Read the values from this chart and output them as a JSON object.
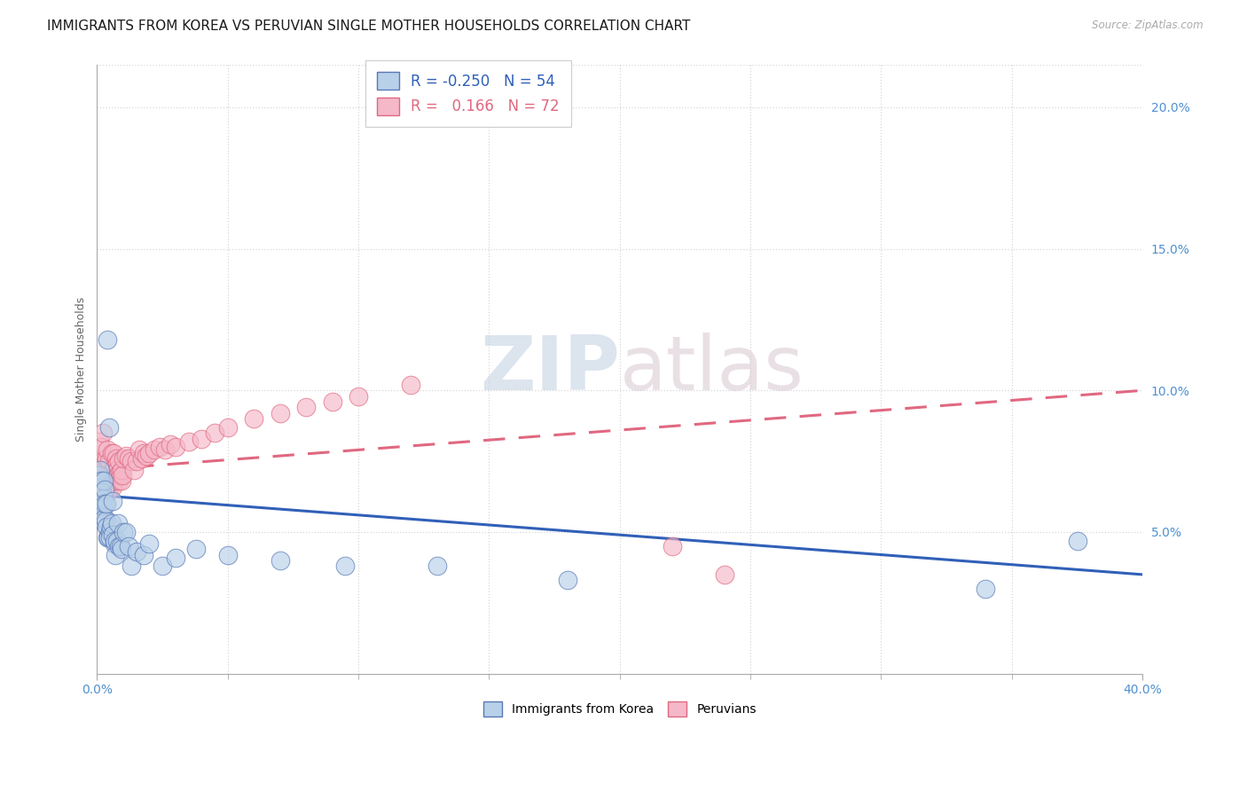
{
  "title": "IMMIGRANTS FROM KOREA VS PERUVIAN SINGLE MOTHER HOUSEHOLDS CORRELATION CHART",
  "source": "Source: ZipAtlas.com",
  "ylabel": "Single Mother Households",
  "xlim": [
    0.0,
    0.4
  ],
  "ylim": [
    0.0,
    0.215
  ],
  "right_ytick_vals": [
    0.2,
    0.15,
    0.1,
    0.05
  ],
  "legend_korea_r": "-0.250",
  "legend_korea_n": "54",
  "legend_peru_r": "0.166",
  "legend_peru_n": "72",
  "korea_color": "#b8d0e8",
  "peru_color": "#f5b8c8",
  "korea_edge_color": "#5878b8",
  "peru_edge_color": "#e06880",
  "korea_line_color": "#3060b8",
  "peru_line_color": "#e06880",
  "watermark_zip": "ZIP",
  "watermark_atlas": "atlas",
  "background_color": "#ffffff",
  "grid_color": "#d8d8d8",
  "title_color": "#1a1a1a",
  "source_color": "#aaaaaa",
  "axis_color": "#5090d0",
  "ylabel_color": "#666666",
  "korea_line_intercept": 0.063,
  "korea_line_slope": -0.07,
  "peru_line_intercept": 0.072,
  "peru_line_slope": 0.07,
  "korea_x": [
    0.0005,
    0.0008,
    0.001,
    0.0012,
    0.0015,
    0.0015,
    0.0018,
    0.002,
    0.002,
    0.0022,
    0.0025,
    0.0025,
    0.0028,
    0.0028,
    0.003,
    0.003,
    0.0032,
    0.0035,
    0.0035,
    0.0038,
    0.004,
    0.0042,
    0.0045,
    0.0048,
    0.005,
    0.0052,
    0.0055,
    0.0058,
    0.006,
    0.0065,
    0.0068,
    0.007,
    0.0075,
    0.008,
    0.0085,
    0.009,
    0.0095,
    0.01,
    0.011,
    0.012,
    0.013,
    0.015,
    0.018,
    0.02,
    0.025,
    0.03,
    0.038,
    0.05,
    0.07,
    0.095,
    0.13,
    0.18,
    0.34,
    0.375
  ],
  "korea_y": [
    0.068,
    0.07,
    0.065,
    0.072,
    0.06,
    0.068,
    0.056,
    0.064,
    0.06,
    0.059,
    0.062,
    0.068,
    0.053,
    0.065,
    0.055,
    0.06,
    0.054,
    0.052,
    0.06,
    0.048,
    0.118,
    0.048,
    0.087,
    0.05,
    0.048,
    0.052,
    0.053,
    0.049,
    0.061,
    0.046,
    0.047,
    0.042,
    0.047,
    0.053,
    0.045,
    0.045,
    0.044,
    0.05,
    0.05,
    0.045,
    0.038,
    0.043,
    0.042,
    0.046,
    0.038,
    0.041,
    0.044,
    0.042,
    0.04,
    0.038,
    0.038,
    0.033,
    0.03,
    0.047
  ],
  "peru_x": [
    0.0005,
    0.0008,
    0.001,
    0.0012,
    0.0015,
    0.0015,
    0.0018,
    0.002,
    0.0022,
    0.0025,
    0.0025,
    0.0028,
    0.0028,
    0.003,
    0.003,
    0.0032,
    0.0035,
    0.0035,
    0.0038,
    0.004,
    0.0042,
    0.0045,
    0.0045,
    0.0048,
    0.005,
    0.0052,
    0.0055,
    0.0058,
    0.006,
    0.0062,
    0.0065,
    0.0068,
    0.007,
    0.0072,
    0.0075,
    0.0078,
    0.008,
    0.0082,
    0.0085,
    0.0088,
    0.009,
    0.0092,
    0.0095,
    0.0098,
    0.01,
    0.011,
    0.012,
    0.013,
    0.014,
    0.015,
    0.016,
    0.017,
    0.018,
    0.019,
    0.02,
    0.022,
    0.024,
    0.026,
    0.028,
    0.03,
    0.035,
    0.04,
    0.045,
    0.05,
    0.06,
    0.07,
    0.08,
    0.09,
    0.1,
    0.12,
    0.22,
    0.24
  ],
  "peru_y": [
    0.075,
    0.068,
    0.082,
    0.072,
    0.07,
    0.08,
    0.075,
    0.068,
    0.085,
    0.072,
    0.068,
    0.07,
    0.074,
    0.067,
    0.072,
    0.065,
    0.07,
    0.076,
    0.064,
    0.079,
    0.067,
    0.07,
    0.075,
    0.068,
    0.066,
    0.068,
    0.078,
    0.072,
    0.066,
    0.078,
    0.068,
    0.073,
    0.07,
    0.076,
    0.074,
    0.072,
    0.07,
    0.075,
    0.068,
    0.071,
    0.07,
    0.068,
    0.072,
    0.07,
    0.076,
    0.077,
    0.076,
    0.075,
    0.072,
    0.075,
    0.079,
    0.076,
    0.078,
    0.077,
    0.078,
    0.079,
    0.08,
    0.079,
    0.081,
    0.08,
    0.082,
    0.083,
    0.085,
    0.087,
    0.09,
    0.092,
    0.094,
    0.096,
    0.098,
    0.102,
    0.045,
    0.035
  ]
}
